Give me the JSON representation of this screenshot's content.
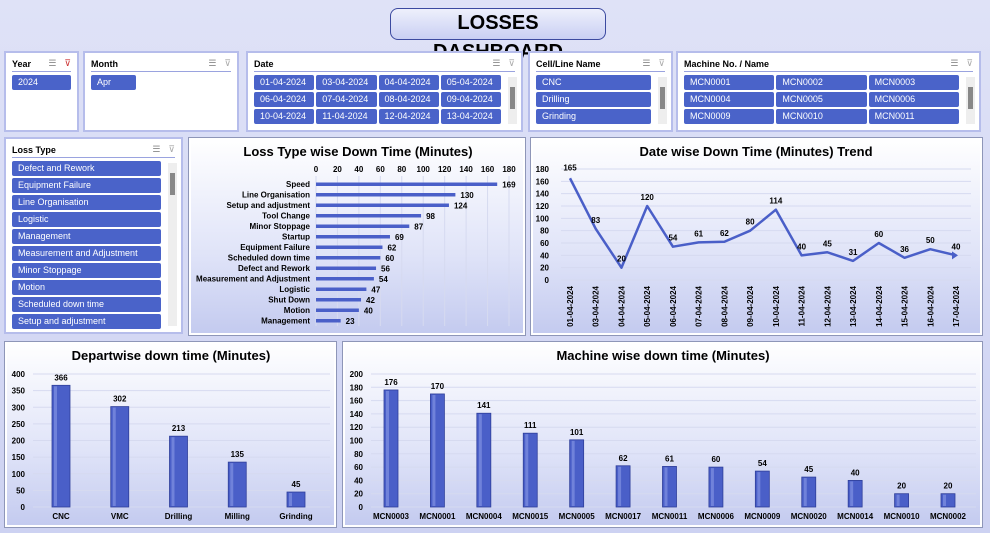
{
  "title": "LOSSES DASHBOARD",
  "slicers": {
    "year": {
      "label": "Year",
      "items": [
        "2024"
      ]
    },
    "month": {
      "label": "Month",
      "items": [
        "Apr"
      ]
    },
    "date": {
      "label": "Date",
      "items": [
        "01-04-2024",
        "03-04-2024",
        "04-04-2024",
        "05-04-2024",
        "06-04-2024",
        "07-04-2024",
        "08-04-2024",
        "09-04-2024",
        "10-04-2024",
        "11-04-2024",
        "12-04-2024",
        "13-04-2024"
      ]
    },
    "cell": {
      "label": "Cell/Line Name",
      "items": [
        "CNC",
        "Drilling",
        "Grinding"
      ]
    },
    "machine": {
      "label": "Machine No. / Name",
      "items": [
        "MCN0001",
        "MCN0002",
        "MCN0003",
        "MCN0004",
        "MCN0005",
        "MCN0006",
        "MCN0009",
        "MCN0010",
        "MCN0011"
      ]
    },
    "loss": {
      "label": "Loss Type",
      "items": [
        "Defect and Rework",
        "Equipment Failure",
        "Line Organisation",
        "Logistic",
        "Management",
        "Measurement and Adjustment",
        "Minor Stoppage",
        "Motion",
        "Scheduled down time",
        "Setup and adjustment"
      ]
    }
  },
  "colors": {
    "bar": "#4a5fc8",
    "selected": "#4a63c9"
  },
  "chart_data": [
    {
      "type": "bar",
      "orientation": "horizontal",
      "title": "Loss Type wise Down Time (Minutes)",
      "xlim": [
        0,
        180
      ],
      "xticks": [
        0,
        20,
        40,
        60,
        80,
        100,
        120,
        140,
        160,
        180
      ],
      "categories": [
        "Speed",
        "Line Organisation",
        "Setup and adjustment",
        "Tool Change",
        "Minor Stoppage",
        "Startup",
        "Equipment Failure",
        "Scheduled down time",
        "Defect and Rework",
        "Measurement and Adjustment",
        "Logistic",
        "Shut Down",
        "Motion",
        "Management"
      ],
      "values": [
        169,
        130,
        124,
        98,
        87,
        69,
        62,
        60,
        56,
        54,
        47,
        42,
        40,
        23
      ],
      "grid": true
    },
    {
      "type": "line",
      "title": "Date wise Down Time (Minutes) Trend",
      "ylim": [
        0,
        180
      ],
      "yticks": [
        0,
        20,
        40,
        60,
        80,
        100,
        120,
        140,
        160,
        180
      ],
      "categories": [
        "01-04-2024",
        "03-04-2024",
        "04-04-2024",
        "05-04-2024",
        "06-04-2024",
        "07-04-2024",
        "08-04-2024",
        "09-04-2024",
        "10-04-2024",
        "11-04-2024",
        "12-04-2024",
        "13-04-2024",
        "14-04-2024",
        "15-04-2024",
        "16-04-2024",
        "17-04-2024"
      ],
      "values": [
        165,
        83,
        20,
        120,
        54,
        61,
        62,
        80,
        114,
        40,
        45,
        31,
        60,
        36,
        50,
        40
      ],
      "grid": true
    },
    {
      "type": "bar",
      "title": "Departwise down time (Minutes)",
      "ylim": [
        0,
        400
      ],
      "yticks": [
        0,
        50,
        100,
        150,
        200,
        250,
        300,
        350,
        400
      ],
      "categories": [
        "CNC",
        "VMC",
        "Drilling",
        "Milling",
        "Grinding"
      ],
      "values": [
        366,
        302,
        213,
        135,
        45
      ],
      "grid": true
    },
    {
      "type": "bar",
      "title": "Machine wise down time (Minutes)",
      "ylim": [
        0,
        200
      ],
      "yticks": [
        0,
        20,
        40,
        60,
        80,
        100,
        120,
        140,
        160,
        180,
        200
      ],
      "categories": [
        "MCN0003",
        "MCN0001",
        "MCN0004",
        "MCN0015",
        "MCN0005",
        "MCN0017",
        "MCN0011",
        "MCN0006",
        "MCN0009",
        "MCN0020",
        "MCN0014",
        "MCN0010",
        "MCN0002"
      ],
      "values": [
        176,
        170,
        141,
        111,
        101,
        62,
        61,
        60,
        54,
        45,
        40,
        20,
        20
      ],
      "grid": true
    }
  ]
}
